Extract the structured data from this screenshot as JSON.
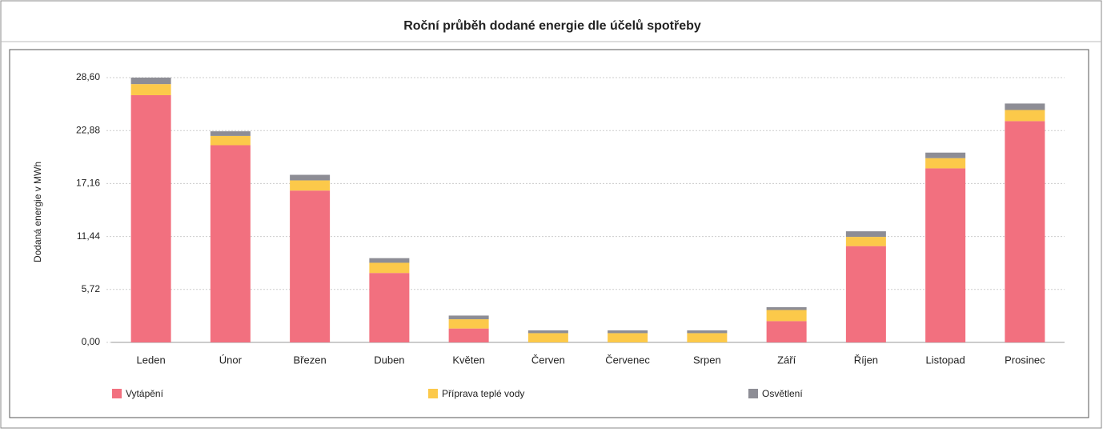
{
  "chart_data": {
    "type": "stacked-bar",
    "title": "Roční průběh dodané energie dle účelů spotřeby",
    "y_label": "Dodaná energie v MWh",
    "categories": [
      "Leden",
      "Únor",
      "Březen",
      "Duben",
      "Květen",
      "Červen",
      "Červenec",
      "Srpen",
      "Září",
      "Říjen",
      "Listopad",
      "Prosinec"
    ],
    "series": [
      {
        "name": "Vytápění",
        "color": "#f2707f",
        "values": [
          26.7,
          21.3,
          16.4,
          7.5,
          1.5,
          0,
          0,
          0,
          2.3,
          10.4,
          18.8,
          23.9
        ]
      },
      {
        "name": "Příprava teplé vody",
        "color": "#fcc94a",
        "values": [
          1.2,
          1.0,
          1.1,
          1.1,
          1.0,
          1.0,
          1.0,
          1.0,
          1.2,
          1.0,
          1.1,
          1.2
        ]
      },
      {
        "name": "Osvětlení",
        "color": "#8d8d95",
        "values": [
          0.7,
          0.5,
          0.6,
          0.5,
          0.4,
          0.3,
          0.3,
          0.3,
          0.3,
          0.6,
          0.6,
          0.7
        ]
      }
    ],
    "ylim": [
      0,
      28.6
    ],
    "yticks": [
      {
        "value": 0,
        "label": "0,00"
      },
      {
        "value": 5.72,
        "label": "5,72"
      },
      {
        "value": 11.44,
        "label": "11,44"
      },
      {
        "value": 17.16,
        "label": "17,16"
      },
      {
        "value": 22.88,
        "label": "22,88"
      },
      {
        "value": 28.6,
        "label": "28,60"
      }
    ],
    "grid": true,
    "legend": "bottom"
  }
}
